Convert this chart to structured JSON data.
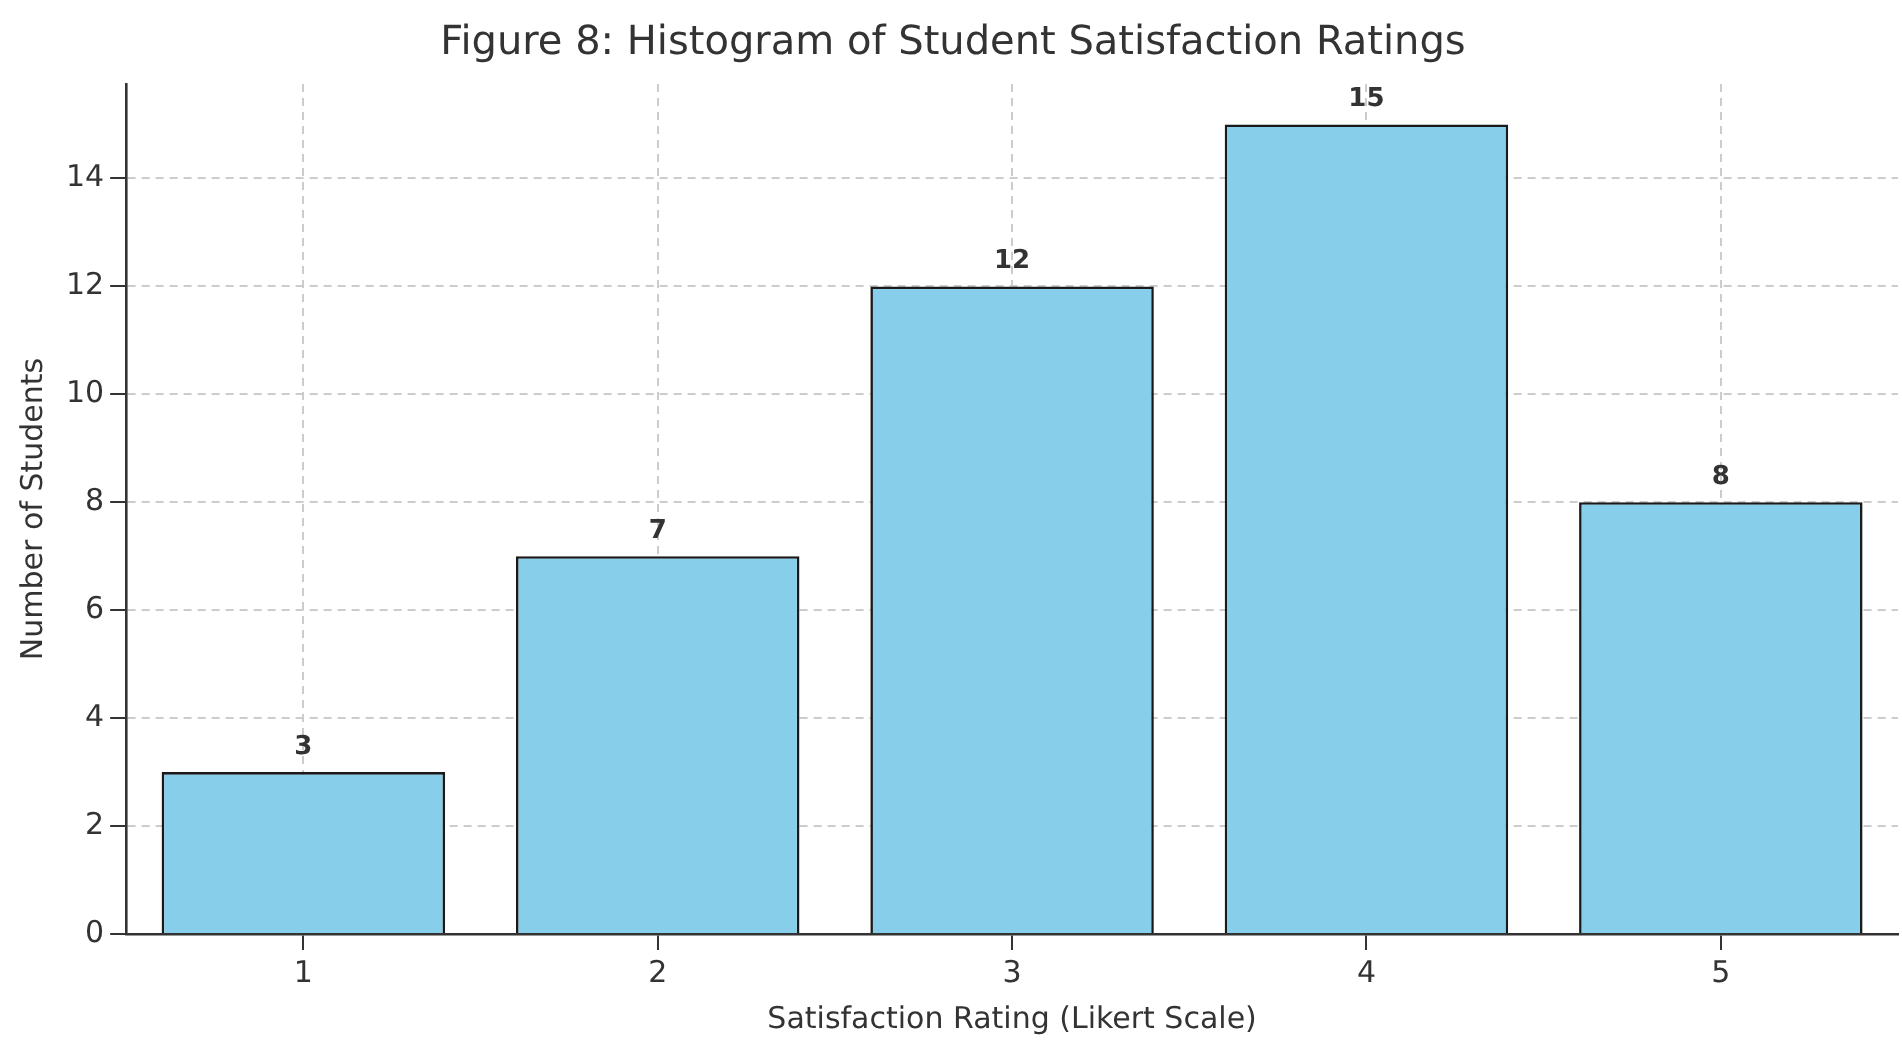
{
  "chart_data": {
    "type": "bar",
    "title": "Figure 8: Histogram of Student Satisfaction Ratings",
    "xlabel": "Satisfaction Rating (Likert Scale)",
    "ylabel": "Number of Students",
    "categories": [
      "1",
      "2",
      "3",
      "4",
      "5"
    ],
    "values": [
      3,
      7,
      12,
      15,
      8
    ],
    "color": "#87ceeb",
    "ylim": [
      0,
      15.75
    ],
    "yticks": [
      0,
      2,
      4,
      6,
      8,
      10,
      12,
      14
    ],
    "grid": true,
    "data_labels": true
  }
}
